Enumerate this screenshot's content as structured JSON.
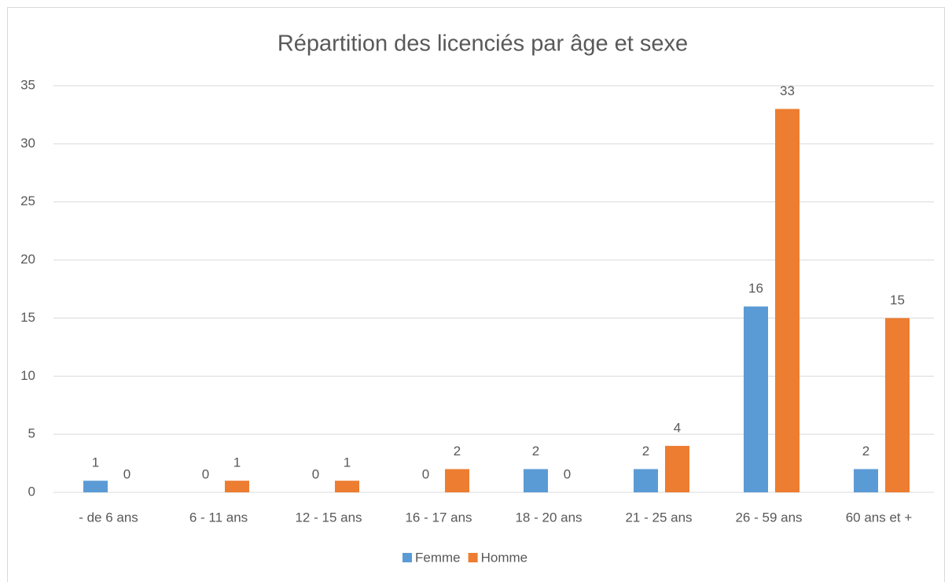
{
  "chart_data": {
    "type": "bar",
    "title": "Répartition des licenciés par âge et sexe",
    "categories": [
      "- de 6 ans",
      "6 - 11 ans",
      "12 - 15 ans",
      "16 - 17 ans",
      "18 - 20 ans",
      "21 - 25 ans",
      "26 - 59 ans",
      "60 ans et +"
    ],
    "series": [
      {
        "name": "Femme",
        "color": "#5b9bd5",
        "values": [
          1,
          0,
          0,
          0,
          2,
          2,
          16,
          2
        ]
      },
      {
        "name": "Homme",
        "color": "#ed7d31",
        "values": [
          0,
          1,
          1,
          2,
          0,
          4,
          33,
          15
        ]
      }
    ],
    "ylim": [
      0,
      35
    ],
    "yticks": [
      0,
      5,
      10,
      15,
      20,
      25,
      30,
      35
    ],
    "grid": true,
    "legend": "bottom"
  }
}
